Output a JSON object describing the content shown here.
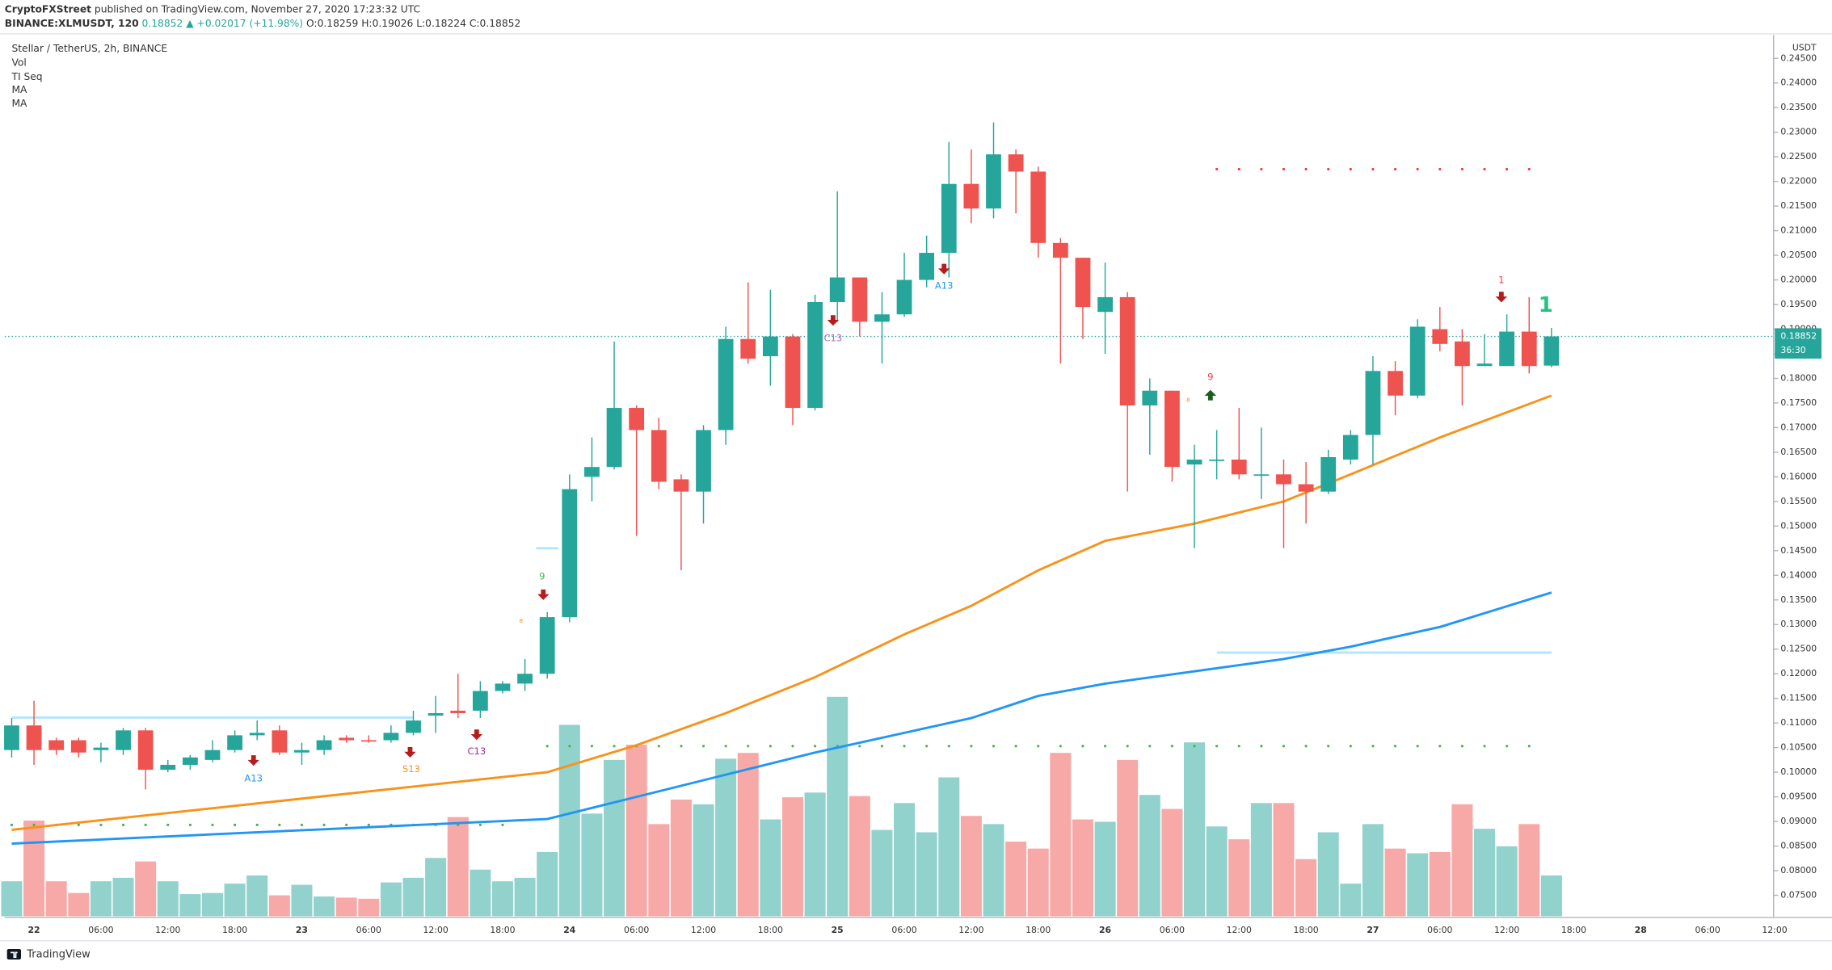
{
  "header": {
    "publisher": "CryptoFXStreet",
    "published": "published on TradingView.com, November 27, 2020 17:23:32 UTC",
    "symbol": "BINANCE:XLMUSDT, 120",
    "last": "0.18852",
    "change": "▲ +0.02017 (+11.98%)",
    "ohlc": [
      "O:0.18259",
      "H:0.19026",
      "L:0.18224",
      "C:0.18852"
    ]
  },
  "legend": [
    "Stellar / TetherUS, 2h, BINANCE",
    "Vol",
    "TI Seq",
    "MA",
    "MA"
  ],
  "footer": "TradingView",
  "chart_data": {
    "type": "candlestick",
    "currency": "USDT",
    "price_tag": "0.18852",
    "countdown": "36:30",
    "up_color": "#26a69a",
    "down_color": "#ef5350",
    "xtick_labels": [
      "22",
      "06:00",
      "12:00",
      "18:00",
      "23",
      "06:00",
      "12:00",
      "18:00",
      "24",
      "06:00",
      "12:00",
      "18:00",
      "25",
      "06:00",
      "12:00",
      "18:00",
      "26",
      "06:00",
      "12:00",
      "18:00",
      "27",
      "06:00",
      "12:00",
      "18:00",
      "28",
      "06:00",
      "12:00"
    ],
    "open": [
      0.1045,
      0.1095,
      0.1065,
      0.1065,
      0.1045,
      0.1045,
      0.1085,
      0.1005,
      0.1015,
      0.1025,
      0.1045,
      0.1075,
      0.1085,
      0.104,
      0.1045,
      0.107,
      0.1065,
      0.1065,
      0.108,
      0.1115,
      0.1125,
      0.1125,
      0.1165,
      0.118,
      0.12,
      0.1315,
      0.16,
      0.162,
      0.174,
      0.1695,
      0.1595,
      0.157,
      0.1695,
      0.188,
      0.1845,
      0.1885,
      0.174,
      0.1955,
      0.2005,
      0.1915,
      0.193,
      0.2,
      0.2055,
      0.2195,
      0.2145,
      0.2255,
      0.222,
      0.2075,
      0.2045,
      0.1935,
      0.1965,
      0.1745,
      0.1775,
      0.1625,
      0.1635,
      0.1635,
      0.1605,
      0.1605,
      0.1585,
      0.157,
      0.1635,
      0.1685,
      0.1815,
      0.1765,
      0.19,
      0.1875,
      0.1825,
      0.1825,
      0.1895,
      0.18259
    ],
    "high": [
      0.111,
      0.1145,
      0.107,
      0.107,
      0.106,
      0.109,
      0.109,
      0.1025,
      0.1035,
      0.1065,
      0.1085,
      0.1105,
      0.1095,
      0.106,
      0.1075,
      0.1075,
      0.1075,
      0.1095,
      0.1125,
      0.1155,
      0.12,
      0.1185,
      0.1185,
      0.123,
      0.1325,
      0.1605,
      0.168,
      0.1875,
      0.1745,
      0.172,
      0.1605,
      0.1705,
      0.1905,
      0.1995,
      0.198,
      0.189,
      0.197,
      0.218,
      0.2005,
      0.1975,
      0.2055,
      0.209,
      0.228,
      0.2265,
      0.232,
      0.2265,
      0.223,
      0.2085,
      0.2045,
      0.2035,
      0.1975,
      0.18,
      0.1775,
      0.1665,
      0.1695,
      0.174,
      0.17,
      0.1635,
      0.163,
      0.1655,
      0.1695,
      0.1845,
      0.1835,
      0.192,
      0.1945,
      0.19,
      0.189,
      0.193,
      0.1965,
      0.19026
    ],
    "low": [
      0.103,
      0.1015,
      0.1035,
      0.103,
      0.102,
      0.1035,
      0.0965,
      0.1,
      0.1005,
      0.102,
      0.104,
      0.1065,
      0.1035,
      0.1015,
      0.1035,
      0.106,
      0.106,
      0.106,
      0.1075,
      0.108,
      0.111,
      0.111,
      0.116,
      0.1165,
      0.119,
      0.1305,
      0.155,
      0.1615,
      0.148,
      0.1575,
      0.141,
      0.1505,
      0.1665,
      0.183,
      0.1785,
      0.1705,
      0.1735,
      0.1915,
      0.1885,
      0.183,
      0.1925,
      0.1985,
      0.2005,
      0.2115,
      0.2125,
      0.2135,
      0.2045,
      0.183,
      0.188,
      0.185,
      0.157,
      0.1645,
      0.159,
      0.1455,
      0.1595,
      0.1595,
      0.1555,
      0.1455,
      0.1505,
      0.1565,
      0.1625,
      0.1625,
      0.1725,
      0.176,
      0.1855,
      0.1745,
      0.1825,
      0.1825,
      0.181,
      0.18224
    ],
    "close": [
      0.1095,
      0.1045,
      0.1045,
      0.104,
      0.105,
      0.1085,
      0.1005,
      0.1015,
      0.103,
      0.1045,
      0.1075,
      0.108,
      0.104,
      0.1045,
      0.1065,
      0.1065,
      0.1063,
      0.108,
      0.1105,
      0.112,
      0.112,
      0.1165,
      0.118,
      0.12,
      0.1315,
      0.1575,
      0.162,
      0.174,
      0.1695,
      0.159,
      0.157,
      0.1695,
      0.188,
      0.184,
      0.1885,
      0.174,
      0.1955,
      0.2005,
      0.1915,
      0.193,
      0.2,
      0.2055,
      0.2195,
      0.2145,
      0.2255,
      0.222,
      0.2075,
      0.2045,
      0.1945,
      0.1965,
      0.1745,
      0.1775,
      0.162,
      0.1635,
      0.1635,
      0.1605,
      0.1605,
      0.1585,
      0.157,
      0.164,
      0.1685,
      0.1815,
      0.1765,
      0.1905,
      0.187,
      0.1825,
      0.183,
      0.1895,
      0.1825,
      0.18852
    ],
    "volume": [
      30,
      82,
      30,
      20,
      30,
      33,
      47,
      30,
      19,
      20,
      28,
      35,
      18,
      27,
      17,
      16,
      15,
      29,
      33,
      50,
      85,
      40,
      30,
      33,
      55,
      164,
      88,
      134,
      147,
      79,
      100,
      96,
      135,
      140,
      83,
      102,
      106,
      188,
      103,
      74,
      97,
      72,
      119,
      86,
      79,
      64,
      58,
      140,
      83,
      81,
      134,
      104,
      92,
      149,
      77,
      66,
      97,
      97,
      49,
      72,
      28,
      79,
      58,
      54,
      55,
      96,
      75,
      60,
      79,
      35
    ],
    "ma": [
      {
        "name": "MA",
        "color": "#f7931a",
        "x": [
          0,
          24,
          28,
          32,
          36,
          40,
          43,
          46,
          49,
          53,
          57,
          60,
          64,
          69
        ],
        "values": [
          0.0883,
          0.1,
          0.1055,
          0.112,
          0.1193,
          0.128,
          0.1338,
          0.141,
          0.147,
          0.1505,
          0.155,
          0.1605,
          0.168,
          0.1765
        ]
      },
      {
        "name": "MA",
        "color": "#2196f3",
        "x": [
          0,
          24,
          28,
          32,
          36,
          40,
          43,
          46,
          49,
          53,
          57,
          60,
          64,
          69
        ],
        "values": [
          0.0855,
          0.0905,
          0.095,
          0.0995,
          0.104,
          0.108,
          0.111,
          0.1155,
          0.118,
          0.1205,
          0.123,
          0.1255,
          0.1295,
          0.1365
        ]
      }
    ],
    "levels": [
      {
        "value": 0.2225,
        "color": "#f23645",
        "style": "dotted"
      },
      {
        "value": 0.1053,
        "color": "#4caf50",
        "style": "dotted"
      },
      {
        "value": 0.0893,
        "color": "#4caf50",
        "style": "dotted"
      },
      {
        "value": 0.1111,
        "color": "#b3e5fc",
        "style": "solid"
      },
      {
        "value": 0.1455,
        "color": "#b3e5fc",
        "style": "solid"
      },
      {
        "value": 0.1243,
        "color": "#b3e5fc",
        "style": "solid"
      }
    ],
    "annotations": [
      "A13",
      "S13",
      "C13",
      "9",
      "8",
      "C13",
      "A13",
      "9",
      "8",
      "1",
      "1"
    ],
    "ylim": [
      0.075,
      0.245
    ],
    "yticks": [
      {
        "value": 0.075,
        "label": "0.07500"
      },
      {
        "value": 0.08,
        "label": "0.08000"
      },
      {
        "value": 0.085,
        "label": "0.08500"
      },
      {
        "value": 0.09,
        "label": "0.09000"
      },
      {
        "value": 0.095,
        "label": "0.09500"
      },
      {
        "value": 0.1,
        "label": "0.10000"
      },
      {
        "value": 0.105,
        "label": "0.10500"
      },
      {
        "value": 0.11,
        "label": "0.11000"
      },
      {
        "value": 0.115,
        "label": "0.11500"
      },
      {
        "value": 0.12,
        "label": "0.12000"
      },
      {
        "value": 0.125,
        "label": "0.12500"
      },
      {
        "value": 0.13,
        "label": "0.13000"
      },
      {
        "value": 0.135,
        "label": "0.13500"
      },
      {
        "value": 0.14,
        "label": "0.14000"
      },
      {
        "value": 0.145,
        "label": "0.14500"
      },
      {
        "value": 0.15,
        "label": "0.15000"
      },
      {
        "value": 0.155,
        "label": "0.15500"
      },
      {
        "value": 0.16,
        "label": "0.16000"
      },
      {
        "value": 0.165,
        "label": "0.16500"
      },
      {
        "value": 0.17,
        "label": "0.17000"
      },
      {
        "value": 0.175,
        "label": "0.17500"
      },
      {
        "value": 0.18,
        "label": "0.18000"
      },
      {
        "value": 0.185,
        "label": "0.18500"
      },
      {
        "value": 0.19,
        "label": "0.19000"
      },
      {
        "value": 0.195,
        "label": "0.19500"
      },
      {
        "value": 0.2,
        "label": "0.20000"
      },
      {
        "value": 0.205,
        "label": "0.20500"
      },
      {
        "value": 0.21,
        "label": "0.21000"
      },
      {
        "value": 0.215,
        "label": "0.21500"
      },
      {
        "value": 0.22,
        "label": "0.22000"
      },
      {
        "value": 0.225,
        "label": "0.22500"
      },
      {
        "value": 0.23,
        "label": "0.23000"
      },
      {
        "value": 0.235,
        "label": "0.23500"
      },
      {
        "value": 0.24,
        "label": "0.24000"
      },
      {
        "value": 0.245,
        "label": "0.24500"
      }
    ]
  }
}
